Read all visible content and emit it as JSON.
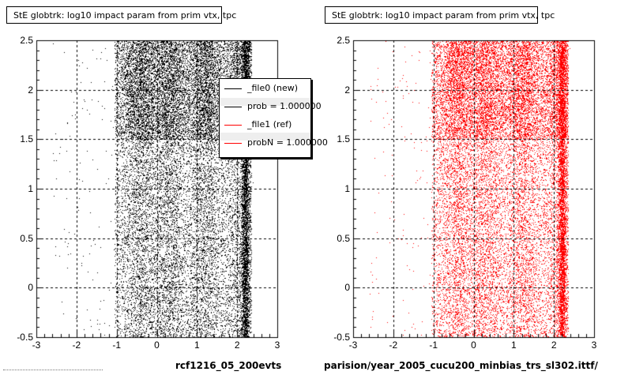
{
  "chart_data": [
    {
      "type": "scatter",
      "title": "StE globtrk: log10 impact param from prim vtx, tpc",
      "xlim": [
        -3,
        3
      ],
      "ylim": [
        -0.5,
        2.5
      ],
      "x_ticks": [
        "-3",
        "-2",
        "-1",
        "0",
        "1",
        "2",
        "3"
      ],
      "y_ticks": [
        "-0.5",
        "0",
        "0.5",
        "1",
        "1.5",
        "2",
        "2.5"
      ],
      "grid": true,
      "color": "#000000",
      "density_profile": {
        "x_support": [
          -1.05,
          2.35
        ],
        "dense_bands_x": [
          -0.4,
          0.3,
          1.2,
          2.2
        ],
        "dense_bands_y": [
          1.5,
          2.5
        ]
      },
      "legend": {
        "placement": "top-right",
        "entries": [
          {
            "label": "_file0 (new)",
            "color": "#000000"
          },
          {
            "label": "prob = 1.000000",
            "color": "#000000"
          },
          {
            "label": "_file1 (ref)",
            "color": "#ff0000"
          },
          {
            "label": "probN = 1.000000",
            "color": "#ff0000"
          }
        ]
      },
      "caption": "rcf1216_05_200evts"
    },
    {
      "type": "scatter",
      "title": "StE globtrk: log10 impact param from prim vtx, tpc",
      "xlim": [
        -3,
        3
      ],
      "ylim": [
        -0.5,
        2.5
      ],
      "x_ticks": [
        "-3",
        "-2",
        "-1",
        "0",
        "1",
        "2",
        "3"
      ],
      "y_ticks": [
        "-0.5",
        "0",
        "0.5",
        "1",
        "1.5",
        "2",
        "2.5"
      ],
      "grid": true,
      "color": "#ff0000",
      "density_profile": {
        "x_support": [
          -1.05,
          2.35
        ],
        "dense_bands_x": [
          -0.4,
          0.3,
          1.2,
          2.2
        ],
        "dense_bands_y": [
          1.5,
          2.5
        ]
      },
      "caption": "parision/year_2005_cucu200_minbias_trs_sl302.ittf/"
    }
  ]
}
